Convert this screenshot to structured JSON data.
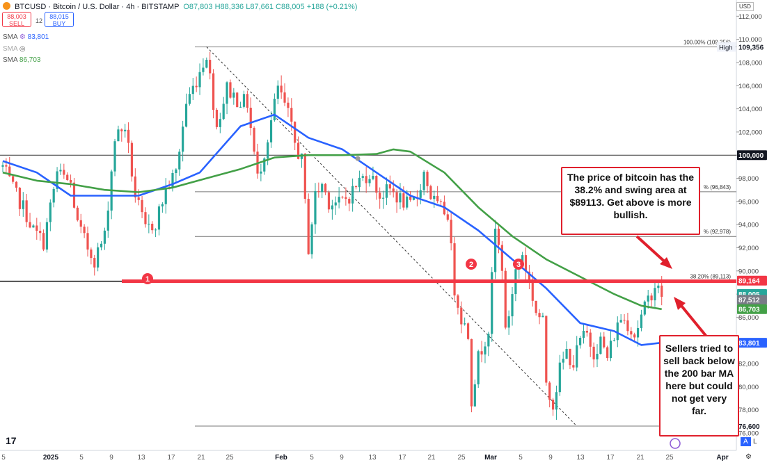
{
  "header": {
    "symbol": "BTCUSD · Bitcoin / U.S. Dollar · 4h · BITSTAMP",
    "ohlc": "O87,803 H88,336 L87,661 C88,005 +188 (+0.21%)",
    "sell_price": "88,003",
    "sell_label": "SELL",
    "spread": "12",
    "buy_price": "88,015",
    "buy_label": "BUY",
    "currency": "USD"
  },
  "indicators": [
    {
      "name": "SMA",
      "value": "83,801",
      "color": "#2962ff"
    },
    {
      "name": "SMA",
      "value": "",
      "color": "#999999"
    },
    {
      "name": "SMA",
      "value": "86,703",
      "color": "#43a047"
    }
  ],
  "annotations": {
    "note_top": "The price of bitcoin has the 38.2% and swing area at $89113.   Get above is more bullish.",
    "note_bottom": "Sellers tried to sell back below the 200 bar MA here but could not get very far.",
    "markers": [
      "1",
      "2",
      "3"
    ]
  },
  "colors": {
    "up": "#26a69a",
    "down": "#ef5350",
    "ma_fast": "#2962ff",
    "ma_slow": "#43a047",
    "resistance": "#f23645",
    "callout": "#e0202c"
  },
  "chart_data": {
    "type": "candlestick",
    "ylim": [
      74500,
      112500
    ],
    "x_ticks": [
      "5",
      "2025",
      "5",
      "9",
      "13",
      "17",
      "21",
      "25",
      "Feb",
      "5",
      "9",
      "13",
      "17",
      "21",
      "25",
      "Mar",
      "5",
      "9",
      "13",
      "17",
      "21",
      "25",
      "Apr"
    ],
    "y_ticks": [
      76000,
      78000,
      80000,
      82000,
      84000,
      86000,
      88000,
      90000,
      92000,
      94000,
      96000,
      98000,
      100000,
      102000,
      104000,
      106000,
      108000,
      110000,
      112000
    ],
    "y_tick_labels": [
      "76,000",
      "78,000",
      "80,000",
      "82,000",
      "84,000",
      "86,000",
      "88,000",
      "90,000",
      "92,000",
      "94,000",
      "96,000",
      "98,000",
      "100,000",
      "102,000",
      "104,000",
      "106,000",
      "108,000",
      "110,000",
      "112,000"
    ],
    "price_path": [
      [
        0,
        99000
      ],
      [
        3,
        97000
      ],
      [
        6,
        95500
      ],
      [
        9,
        93500
      ],
      [
        12,
        92500
      ],
      [
        16,
        98500
      ],
      [
        20,
        97500
      ],
      [
        22,
        94000
      ],
      [
        25,
        92000
      ],
      [
        27,
        91000
      ],
      [
        30,
        93000
      ],
      [
        33,
        101500
      ],
      [
        36,
        102500
      ],
      [
        39,
        96500
      ],
      [
        42,
        93500
      ],
      [
        45,
        94200
      ],
      [
        48,
        97000
      ],
      [
        51,
        98500
      ],
      [
        54,
        104500
      ],
      [
        57,
        106500
      ],
      [
        60,
        108800
      ],
      [
        63,
        102500
      ],
      [
        66,
        105800
      ],
      [
        69,
        104800
      ],
      [
        72,
        104500
      ],
      [
        75,
        98000
      ],
      [
        78,
        101500
      ],
      [
        81,
        105800
      ],
      [
        84,
        103500
      ],
      [
        86,
        101000
      ],
      [
        88,
        99500
      ],
      [
        90,
        92000
      ],
      [
        92,
        96500
      ],
      [
        94,
        97500
      ],
      [
        96,
        96000
      ],
      [
        99,
        95800
      ],
      [
        102,
        96500
      ],
      [
        105,
        97800
      ],
      [
        108,
        98500
      ],
      [
        111,
        96500
      ],
      [
        114,
        97000
      ],
      [
        117,
        96200
      ],
      [
        120,
        95500
      ],
      [
        122,
        96500
      ],
      [
        124,
        98500
      ],
      [
        126,
        96500
      ],
      [
        128,
        95500
      ],
      [
        131,
        95000
      ],
      [
        133,
        88500
      ],
      [
        135,
        86000
      ],
      [
        137,
        84500
      ],
      [
        138,
        79000
      ],
      [
        140,
        82500
      ],
      [
        143,
        85000
      ],
      [
        145,
        93500
      ],
      [
        147,
        90500
      ],
      [
        148,
        84500
      ],
      [
        151,
        90000
      ],
      [
        153,
        91500
      ],
      [
        155,
        89000
      ],
      [
        157,
        86500
      ],
      [
        159,
        85500
      ],
      [
        160,
        80500
      ],
      [
        162,
        78500
      ],
      [
        164,
        81500
      ],
      [
        166,
        83000
      ],
      [
        168,
        82000
      ],
      [
        170,
        84000
      ],
      [
        172,
        84500
      ],
      [
        174,
        83000
      ],
      [
        176,
        84000
      ],
      [
        178,
        82500
      ],
      [
        180,
        84500
      ],
      [
        182,
        86000
      ],
      [
        184,
        85500
      ],
      [
        186,
        84500
      ],
      [
        188,
        86000
      ],
      [
        190,
        87500
      ],
      [
        192,
        88800
      ],
      [
        193,
        88300
      ],
      [
        194,
        88000
      ]
    ],
    "series": [
      {
        "name": "SMA",
        "color": "#2962ff",
        "values": [
          [
            0,
            99500
          ],
          [
            10,
            98500
          ],
          [
            20,
            96500
          ],
          [
            30,
            96500
          ],
          [
            40,
            96500
          ],
          [
            50,
            97500
          ],
          [
            58,
            98500
          ],
          [
            70,
            102500
          ],
          [
            80,
            103500
          ],
          [
            90,
            101500
          ],
          [
            100,
            100500
          ],
          [
            110,
            98500
          ],
          [
            120,
            96500
          ],
          [
            130,
            95500
          ],
          [
            140,
            93500
          ],
          [
            150,
            91000
          ],
          [
            160,
            88500
          ],
          [
            170,
            85500
          ],
          [
            180,
            84800
          ],
          [
            188,
            83600
          ],
          [
            194,
            83800
          ]
        ]
      },
      {
        "name": "SMA",
        "color": "#43a047",
        "values": [
          [
            0,
            98500
          ],
          [
            10,
            97800
          ],
          [
            20,
            97500
          ],
          [
            30,
            97000
          ],
          [
            40,
            96800
          ],
          [
            50,
            97200
          ],
          [
            60,
            98000
          ],
          [
            70,
            98800
          ],
          [
            80,
            99800
          ],
          [
            90,
            100000
          ],
          [
            100,
            100000
          ],
          [
            110,
            100100
          ],
          [
            115,
            100500
          ],
          [
            120,
            100300
          ],
          [
            130,
            98500
          ],
          [
            140,
            95500
          ],
          [
            150,
            93000
          ],
          [
            160,
            91000
          ],
          [
            170,
            89500
          ],
          [
            180,
            88000
          ],
          [
            188,
            87000
          ],
          [
            194,
            86700
          ]
        ]
      }
    ],
    "horizontal_levels": [
      {
        "value": 109356,
        "label": "100.00% (109,356)"
      },
      {
        "value": 100000,
        "label": ""
      },
      {
        "value": 96843,
        "label": "% (96,843)"
      },
      {
        "value": 92978,
        "label": "% (92,978)"
      },
      {
        "value": 89113,
        "label": "38.20% (89,113)"
      },
      {
        "value": 76600,
        "label": ""
      }
    ],
    "price_tags": [
      {
        "value": 109356,
        "label": "109,356",
        "side_label": "High",
        "bg": "#ffffff",
        "fg": "#131722"
      },
      {
        "value": 100000,
        "label": "100,000",
        "bg": "#131722",
        "fg": "#ffffff"
      },
      {
        "value": 89164,
        "label": "89,164",
        "bg": "#f23645",
        "fg": "#ffffff"
      },
      {
        "value": 88005,
        "label": "88,005",
        "bg": "#26a69a",
        "fg": "#ffffff"
      },
      {
        "value": 87512,
        "label": "87,512",
        "bg": "#787b86",
        "fg": "#ffffff"
      },
      {
        "value": 86703,
        "label": "86,703",
        "bg": "#43a047",
        "fg": "#ffffff"
      },
      {
        "value": 83801,
        "label": "83,801",
        "bg": "#2962ff",
        "fg": "#ffffff"
      },
      {
        "value": 76600,
        "label": "76,600",
        "bg": "#ffffff",
        "fg": "#131722"
      }
    ],
    "resistance_level": 89113,
    "trendline": [
      [
        60,
        109356
      ],
      [
        169,
        76600
      ]
    ]
  }
}
